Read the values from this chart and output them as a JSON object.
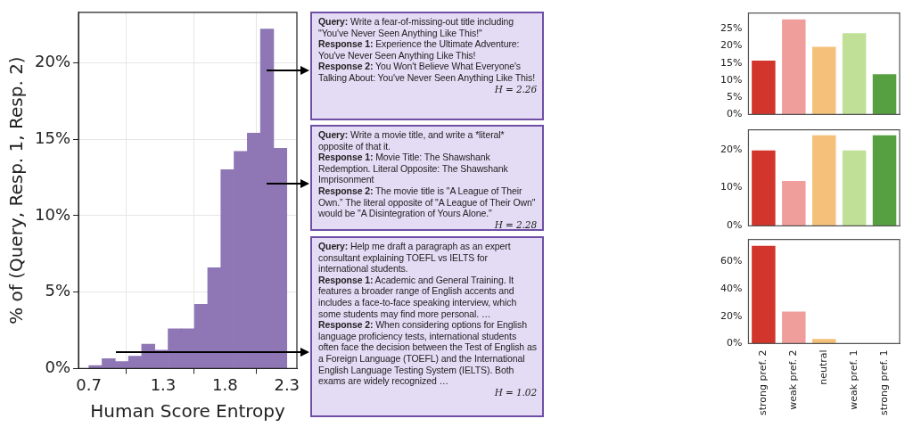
{
  "chart_data": [
    {
      "type": "histogram",
      "xlabel": "Human Score Entropy",
      "ylabel": "% of (Query, Resp. 1, Resp. 2)",
      "color": "#8f76b5",
      "bins": [
        0.7,
        0.807,
        0.913,
        1.02,
        1.127,
        1.233,
        1.34,
        1.447,
        1.553,
        1.66,
        1.767,
        1.873,
        1.98,
        2.087,
        2.193,
        2.3
      ],
      "values": [
        0.2,
        0.65,
        0.45,
        0.8,
        1.6,
        1.2,
        2.6,
        2.6,
        4.2,
        6.6,
        13.0,
        14.2,
        15.4,
        22.2,
        14.4
      ],
      "xlim": [
        0.616,
        2.381
      ],
      "xticks": [
        0.7,
        1.3,
        1.8,
        2.3
      ],
      "ylim": [
        0,
        23.3
      ],
      "yticks": [
        {
          "value": 0,
          "label": "0%"
        },
        {
          "value": 5,
          "label": "5%"
        },
        {
          "value": 10,
          "label": "10%"
        },
        {
          "value": 15,
          "label": "15%"
        },
        {
          "value": 20,
          "label": "20%"
        }
      ],
      "grid": true
    },
    {
      "type": "other",
      "annotations": [
        "Query:",
        "Write a fear-of-missing-out title including \"You've Never Seen Anything Like This!\"",
        "Response 1:",
        "Experience the Ultimate Adventure: You've Never Seen Anything Like This!",
        "Response 2:",
        "You Won't Believe What Everyone's Talking About: You've Never Seen Anything Like This!",
        "H = 2.26"
      ]
    },
    {
      "type": "bar",
      "categories": [
        null,
        null,
        null,
        null,
        null
      ],
      "values": [
        16,
        28,
        20,
        24,
        12
      ],
      "colors": [
        "#d1352b",
        "#f09e9b",
        "#f5c07a",
        "#bfe096",
        "#56a041"
      ],
      "ylim": [
        0,
        29.6
      ],
      "yticks": [
        {
          "value": 0,
          "label": "0%"
        },
        {
          "value": 5,
          "label": "5%"
        },
        {
          "value": 10,
          "label": "10%"
        },
        {
          "value": 15,
          "label": "15%"
        },
        {
          "value": 20,
          "label": "20%"
        },
        {
          "value": 25,
          "label": "25%"
        }
      ],
      "tick_labels": "y"
    },
    {
      "type": "other",
      "annotations": [
        "Query:",
        "Write a movie title, and write a *literal* opposite of that it.",
        "Response 1:",
        "Movie Title: The Shawshank Redemption. Literal Opposite: The Shawshank Imprisonment",
        "Response 2:",
        "The movie title is \"A League of Their Own.” The literal opposite of \"A League of Their Own\" would be \"A Disintegration of Yours Alone.\"",
        "H = 2.28"
      ]
    },
    {
      "type": "bar",
      "categories": [
        null,
        null,
        null,
        null,
        null
      ],
      "values": [
        20,
        12,
        24,
        20,
        24
      ],
      "colors": [
        "#d1352b",
        "#f09e9b",
        "#f5c07a",
        "#bfe096",
        "#56a041"
      ],
      "ylim": [
        0,
        25.2
      ],
      "yticks": [
        {
          "value": 0,
          "label": "0%"
        },
        {
          "value": 10,
          "label": "10%"
        },
        {
          "value": 20,
          "label": "20%"
        }
      ],
      "tick_labels": "y"
    },
    {
      "type": "other",
      "annotations": [
        "Query:",
        "Help me draft a paragraph as an expert consultant explaining TOEFL vs IELTS for international students.",
        "Response 1:",
        "Academic and General Training. It features a broader range of English accents and includes a face-to-face speaking interview, which some students may find more personal. …",
        "Response 2:",
        "When considering options for English language proficiency tests, international students often face the decision between the Test of English as a Foreign Language (TOEFL) and the International English Language Testing System (IELTS). Both exams are widely recognized …",
        "H = 1.02"
      ]
    },
    {
      "type": "bar",
      "categories": [
        "strong pref. 2",
        "weak pref. 2",
        "neutral",
        "weak pref. 1",
        "strong pref. 1"
      ],
      "values": [
        72,
        24,
        4,
        0,
        0
      ],
      "colors": [
        "#d1352b",
        "#f09e9b",
        "#f5c07a",
        "#bfe096",
        "#56a041"
      ],
      "ylim": [
        0,
        76
      ],
      "yticks": [
        {
          "value": 0,
          "label": "0%"
        },
        {
          "value": 20,
          "label": "20%"
        },
        {
          "value": 40,
          "label": "40%"
        },
        {
          "value": 60,
          "label": "60%"
        }
      ]
    }
  ]
}
